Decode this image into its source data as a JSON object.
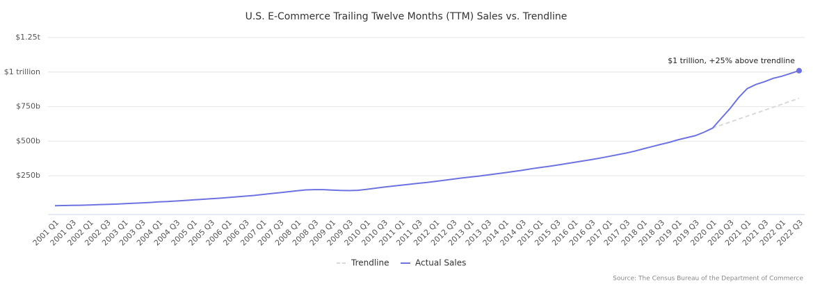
{
  "chart_data": {
    "type": "line",
    "title": "U.S. E-Commerce Trailing Twelve Months (TTM) Sales vs. Trendline",
    "source": "Source: The Census Bureau of the Department of Commerce",
    "annotation": "$1 trillion, +25% above trendline",
    "categories": [
      "2001 Q1",
      null,
      "2001 Q3",
      null,
      "2002 Q1",
      null,
      "2002 Q3",
      null,
      "2003 Q1",
      null,
      "2003 Q3",
      null,
      "2004 Q1",
      null,
      "2004 Q3",
      null,
      "2005 Q1",
      null,
      "2005 Q3",
      null,
      "2006 Q1",
      null,
      "2006 Q3",
      null,
      "2007 Q1",
      null,
      "2007 Q3",
      null,
      "2008 Q1",
      null,
      "2008 Q3",
      null,
      "2009 Q1",
      null,
      "2009 Q3",
      null,
      "2010 Q1",
      null,
      "2010 Q3",
      null,
      "2011 Q1",
      null,
      "2011 Q3",
      null,
      "2012 Q1",
      null,
      "2012 Q3",
      null,
      "2013 Q1",
      null,
      "2013 Q3",
      null,
      "2014 Q1",
      null,
      "2014 Q3",
      null,
      "2015 Q1",
      null,
      "2015 Q3",
      null,
      "2016 Q1",
      null,
      "2016 Q3",
      null,
      "2017 Q1",
      null,
      "2017 Q3",
      null,
      "2018 Q1",
      null,
      "2018 Q3",
      null,
      "2019 Q1",
      null,
      "2019 Q3",
      null,
      "2020 Q1",
      null,
      "2020 Q3",
      null,
      "2021 Q1",
      null,
      "2021 Q3",
      null,
      "2022 Q1",
      null,
      "2022 Q3"
    ],
    "series": [
      {
        "name": "Trendline",
        "color": "#d9d9d9",
        "dashed": true,
        "values": [
          null,
          null,
          null,
          null,
          null,
          null,
          null,
          null,
          null,
          null,
          null,
          null,
          null,
          null,
          null,
          null,
          null,
          null,
          null,
          null,
          null,
          null,
          null,
          null,
          null,
          null,
          null,
          null,
          null,
          null,
          null,
          null,
          null,
          null,
          null,
          null,
          null,
          null,
          null,
          null,
          null,
          null,
          null,
          null,
          null,
          null,
          null,
          null,
          null,
          null,
          null,
          null,
          null,
          null,
          null,
          null,
          null,
          null,
          null,
          null,
          null,
          null,
          null,
          null,
          null,
          null,
          null,
          null,
          null,
          null,
          null,
          null,
          null,
          null,
          null,
          null,
          595,
          617,
          638,
          660,
          681,
          703,
          724,
          746,
          767,
          789,
          810
        ]
      },
      {
        "name": "Actual Sales",
        "color": "#6d72e0",
        "dashed": false,
        "values": [
          34,
          35,
          36,
          37,
          39,
          41,
          43,
          45,
          48,
          51,
          54,
          57,
          61,
          64,
          68,
          72,
          76,
          80,
          84,
          88,
          93,
          98,
          103,
          108,
          115,
          122,
          128,
          135,
          142,
          148,
          150,
          150,
          147,
          144,
          143,
          145,
          152,
          160,
          168,
          175,
          182,
          189,
          196,
          202,
          210,
          218,
          226,
          234,
          241,
          248,
          256,
          264,
          272,
          281,
          290,
          300,
          309,
          318,
          327,
          337,
          347,
          357,
          367,
          378,
          390,
          402,
          414,
          428,
          445,
          461,
          477,
          492,
          510,
          525,
          540,
          565,
          595,
          665,
          735,
          815,
          880,
          910,
          930,
          955,
          970,
          990,
          1010
        ]
      }
    ],
    "ylim": [
      0,
      1250
    ],
    "yticks": [
      {
        "value": 250,
        "label": "$250b"
      },
      {
        "value": 500,
        "label": "$500b"
      },
      {
        "value": 750,
        "label": "$750b"
      },
      {
        "value": 1000,
        "label": "$1 trillion"
      },
      {
        "value": 1250,
        "label": "$1.25t"
      }
    ],
    "grid": true,
    "legend": "bottom"
  }
}
